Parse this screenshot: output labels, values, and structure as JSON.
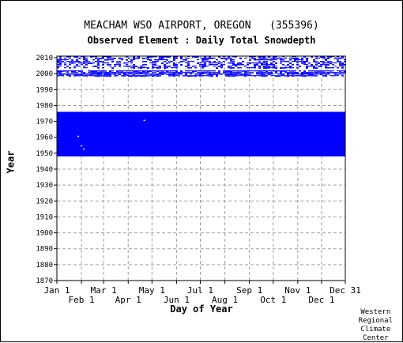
{
  "chart_data": {
    "type": "heatmap",
    "title": "MEACHAM WSO AIRPORT, OREGON   (355396)",
    "subtitle": "Observed Element : Daily Total Snowdepth",
    "xlabel": "Day of Year",
    "ylabel": "Year",
    "ylim": [
      1870,
      2011
    ],
    "y_ticks": [
      1870,
      1880,
      1890,
      1900,
      1910,
      1920,
      1930,
      1940,
      1950,
      1960,
      1970,
      1980,
      1990,
      2000,
      2010
    ],
    "x_ticks_row1": [
      "Jan 1",
      "Mar 1",
      "May 1",
      "Jul 1",
      "Sep 1",
      "Nov 1",
      "Dec 31"
    ],
    "x_ticks_row2": [
      "Feb 1",
      "Apr 1",
      "Jun 1",
      "Aug 1",
      "Oct 1",
      "Dec 1"
    ],
    "grid": true,
    "series_color": "#0000ff",
    "coverage_blocks": [
      {
        "year_start": 1948,
        "year_end": 1976,
        "day_start": 1,
        "day_end": 365,
        "density": "solid"
      },
      {
        "year_start": 1998,
        "year_end": 2002,
        "day_start": 1,
        "day_end": 365,
        "density": "dense"
      },
      {
        "year_start": 2003,
        "year_end": 2011,
        "day_start": 1,
        "day_end": 365,
        "density": "sparse"
      }
    ],
    "credit": "Western\nRegional\nClimate\nCenter"
  }
}
